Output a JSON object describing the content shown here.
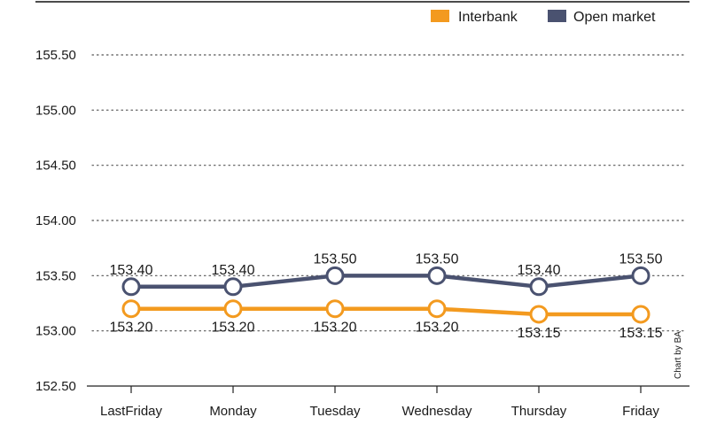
{
  "chart_data": {
    "type": "line",
    "categories": [
      "LastFriday",
      "Monday",
      "Tuesday",
      "Wednesday",
      "Thursday",
      "Friday"
    ],
    "series": [
      {
        "name": "Interbank",
        "color": "#f39a1f",
        "values": [
          153.2,
          153.2,
          153.2,
          153.2,
          153.15,
          153.15
        ],
        "labels": [
          "153.20",
          "153.20",
          "153.20",
          "153.20",
          "153.15",
          "153.15"
        ]
      },
      {
        "name": "Open market",
        "color": "#4a5270",
        "values": [
          153.4,
          153.4,
          153.5,
          153.5,
          153.4,
          153.5
        ],
        "labels": [
          "153.40",
          "153.40",
          "153.50",
          "153.50",
          "153.40",
          "153.50"
        ]
      }
    ],
    "y_ticks": [
      152.5,
      153.0,
      153.5,
      154.0,
      154.5,
      155.0,
      155.5
    ],
    "y_tick_labels": [
      "152.50",
      "153.00",
      "153.50",
      "154.00",
      "154.50",
      "155.00",
      "155.50"
    ],
    "ylim": [
      152.5,
      155.5
    ],
    "grid": true,
    "legend_position": "top-right",
    "credit": "Chart by BA"
  }
}
